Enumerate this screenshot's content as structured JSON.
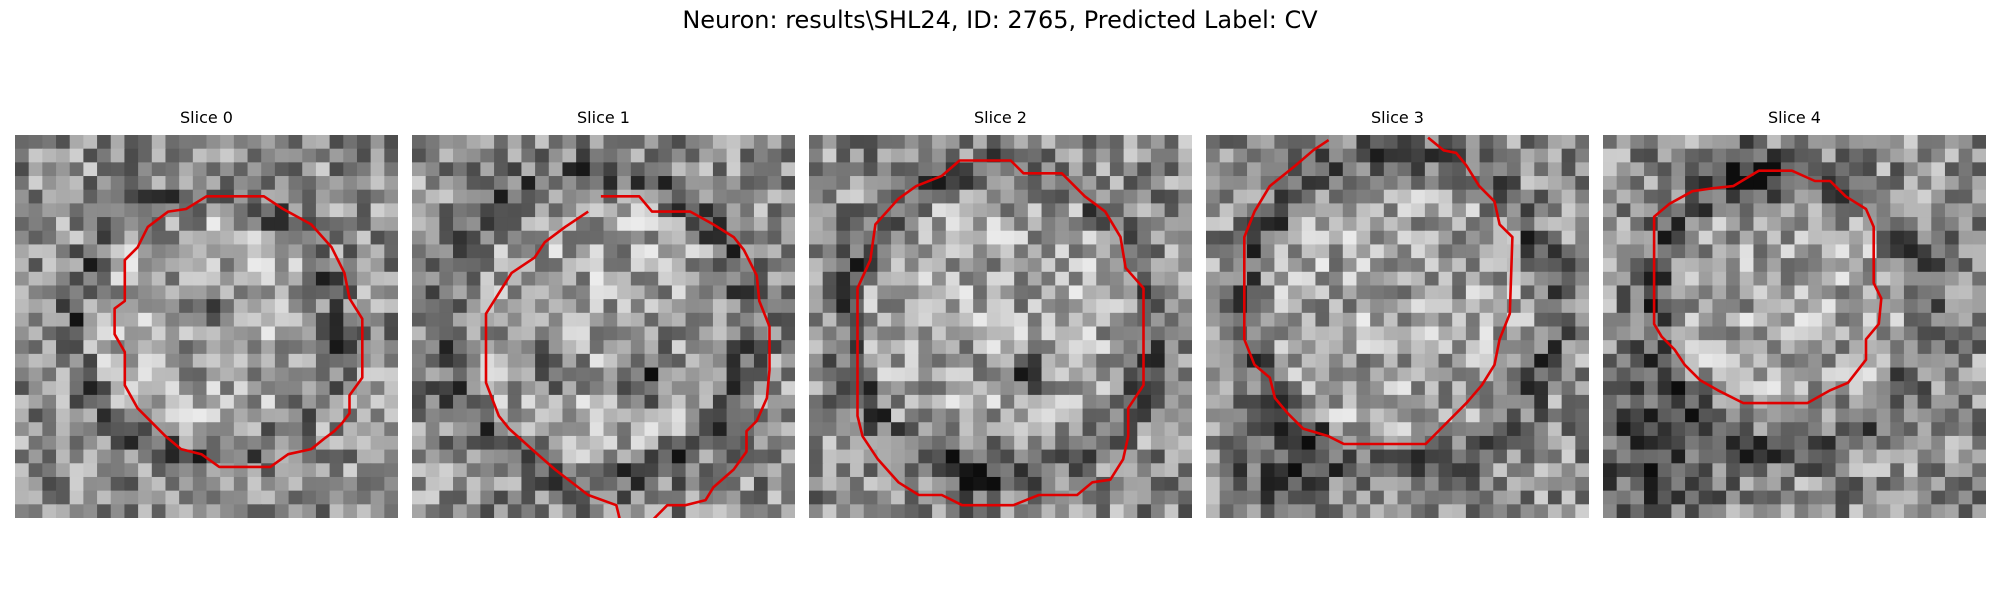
{
  "figure": {
    "title": "Neuron: results\\SHL24, ID: 2765, Predicted Label: CV",
    "contour_color": "#e00000"
  },
  "panels": [
    {
      "title": "Slice 0"
    },
    {
      "title": "Slice 1"
    },
    {
      "title": "Slice 2"
    },
    {
      "title": "Slice 3"
    },
    {
      "title": "Slice 4"
    }
  ]
}
